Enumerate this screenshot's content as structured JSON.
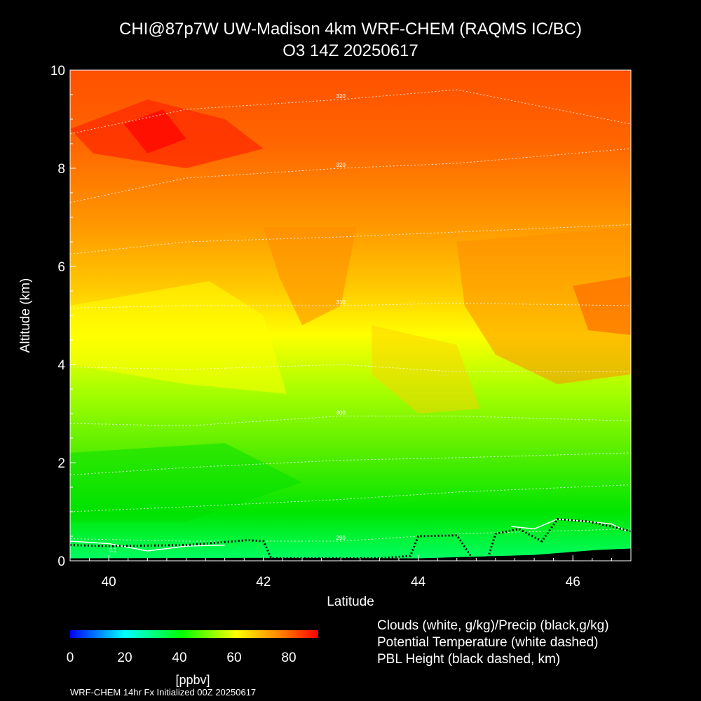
{
  "title_line1": "CHI@87p7W UW-Madison 4km WRF-CHEM (RAQMS IC/BC)",
  "title_line2": "O3 14Z 20250617",
  "colorbar": {
    "ticks": [
      "0",
      "20",
      "40",
      "60",
      "80"
    ],
    "units": "[ppbv]",
    "stops": [
      "#0000ff",
      "#00ffff",
      "#00ff00",
      "#ffff00",
      "#ff8000",
      "#ff0000"
    ]
  },
  "legend": [
    "Clouds (white, g/kg)/Precip (black,g/kg)",
    "Potential Temperature (white dashed)",
    "PBL Height (black dashed, km)"
  ],
  "footer": "WRF-CHEM 14hr  Fx Initialized 00Z 20250617",
  "chart_data": {
    "type": "heatmap",
    "variable": "O3",
    "units": "ppbv",
    "xlabel": "Latitude",
    "ylabel": "Altitude (km)",
    "xlim": [
      39.5,
      46.75
    ],
    "ylim": [
      0,
      10
    ],
    "xticks": [
      "40",
      "42",
      "44",
      "46"
    ],
    "yticks": [
      "0",
      "2",
      "4",
      "6",
      "8",
      "10"
    ],
    "color_range": [
      0,
      90
    ],
    "ozone_bands": [
      {
        "altitude_km": 0.3,
        "ppbv": 40
      },
      {
        "altitude_km": 1.0,
        "ppbv": 46
      },
      {
        "altitude_km": 2.0,
        "ppbv": 52
      },
      {
        "altitude_km": 3.0,
        "ppbv": 58
      },
      {
        "altitude_km": 4.0,
        "ppbv": 64
      },
      {
        "altitude_km": 5.0,
        "ppbv": 70
      },
      {
        "altitude_km": 6.0,
        "ppbv": 74
      },
      {
        "altitude_km": 7.5,
        "ppbv": 78
      },
      {
        "altitude_km": 9.0,
        "ppbv": 84
      }
    ],
    "theta_contours": [
      {
        "label": "290",
        "points": [
          [
            39.5,
            0.45
          ],
          [
            41.0,
            0.4
          ],
          [
            43.0,
            0.4
          ],
          [
            44.5,
            0.55
          ],
          [
            46.75,
            0.65
          ]
        ]
      },
      {
        "label": "",
        "points": [
          [
            39.5,
            1.0
          ],
          [
            41.0,
            1.1
          ],
          [
            43.0,
            1.25
          ],
          [
            44.5,
            1.4
          ],
          [
            46.75,
            1.55
          ]
        ]
      },
      {
        "label": "",
        "points": [
          [
            39.5,
            1.75
          ],
          [
            41.0,
            1.9
          ],
          [
            43.0,
            2.05
          ],
          [
            44.5,
            2.1
          ],
          [
            46.75,
            2.2
          ]
        ]
      },
      {
        "label": "300",
        "points": [
          [
            39.5,
            2.8
          ],
          [
            41.0,
            2.75
          ],
          [
            43.0,
            2.95
          ],
          [
            44.5,
            2.95
          ],
          [
            46.75,
            2.85
          ]
        ]
      },
      {
        "label": "",
        "points": [
          [
            39.5,
            3.95
          ],
          [
            41.0,
            3.9
          ],
          [
            43.0,
            4.0
          ],
          [
            44.5,
            3.85
          ],
          [
            46.75,
            3.85
          ]
        ]
      },
      {
        "label": "310",
        "points": [
          [
            39.5,
            5.15
          ],
          [
            41.0,
            5.2
          ],
          [
            43.0,
            5.2
          ],
          [
            44.5,
            5.25
          ],
          [
            46.75,
            5.2
          ]
        ]
      },
      {
        "label": "",
        "points": [
          [
            39.5,
            6.25
          ],
          [
            41.0,
            6.5
          ],
          [
            43.0,
            6.6
          ],
          [
            44.5,
            6.7
          ],
          [
            46.75,
            6.85
          ]
        ]
      },
      {
        "label": "320",
        "points": [
          [
            39.5,
            7.3
          ],
          [
            41.0,
            7.8
          ],
          [
            43.0,
            8.0
          ],
          [
            44.5,
            8.1
          ],
          [
            46.75,
            8.4
          ]
        ]
      },
      {
        "label": "320",
        "points": [
          [
            39.5,
            8.7
          ],
          [
            41.0,
            9.2
          ],
          [
            43.0,
            9.4
          ],
          [
            44.5,
            9.6
          ],
          [
            46.75,
            8.9
          ]
        ]
      }
    ],
    "pbl_height_km": [
      [
        39.5,
        0.32
      ],
      [
        40.0,
        0.3
      ],
      [
        41.0,
        0.32
      ],
      [
        41.8,
        0.42
      ],
      [
        42.0,
        0.4
      ],
      [
        42.1,
        0.05
      ],
      [
        43.5,
        0.05
      ],
      [
        43.9,
        0.1
      ],
      [
        44.0,
        0.5
      ],
      [
        44.5,
        0.52
      ],
      [
        44.7,
        0.05
      ],
      [
        44.9,
        0.05
      ],
      [
        45.0,
        0.55
      ],
      [
        45.3,
        0.65
      ],
      [
        45.6,
        0.4
      ],
      [
        45.8,
        0.85
      ],
      [
        46.2,
        0.8
      ],
      [
        46.5,
        0.7
      ],
      [
        46.75,
        0.6
      ]
    ],
    "cloud_label": "0.1",
    "cloud_contours": [
      {
        "points": [
          [
            39.5,
            0.4
          ],
          [
            40.0,
            0.35
          ],
          [
            40.5,
            0.2
          ],
          [
            41.0,
            0.3
          ],
          [
            41.5,
            0.32
          ]
        ]
      },
      {
        "points": [
          [
            45.2,
            0.7
          ],
          [
            45.5,
            0.65
          ],
          [
            45.8,
            0.85
          ],
          [
            46.2,
            0.8
          ],
          [
            46.5,
            0.75
          ],
          [
            46.7,
            0.6
          ]
        ]
      }
    ]
  }
}
